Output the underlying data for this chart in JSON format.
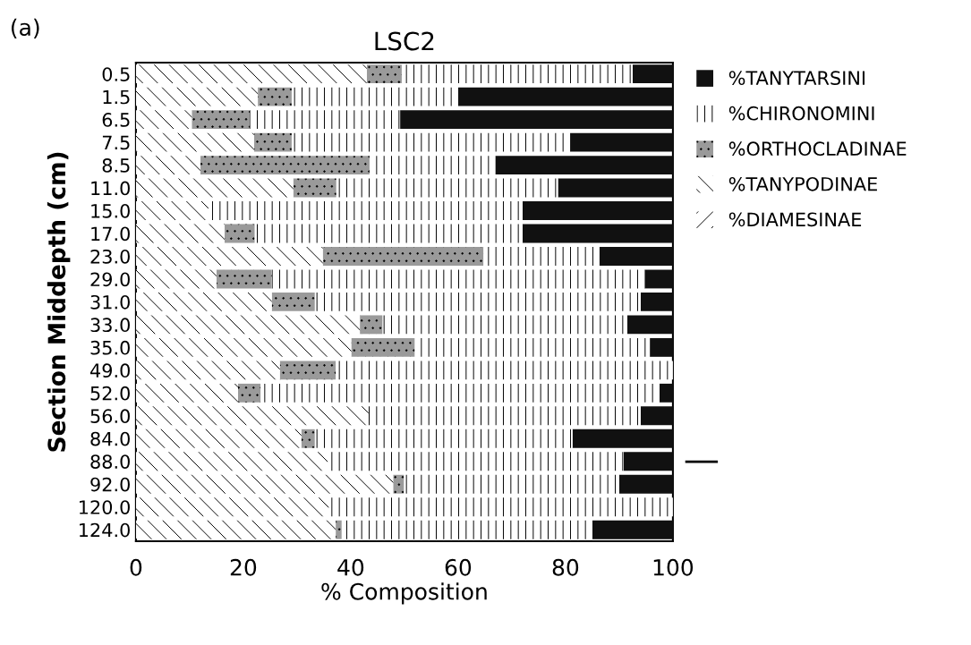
{
  "chart_data": {
    "type": "bar",
    "orientation": "horizontal",
    "stacked": true,
    "title": "LSC2",
    "xlabel": "% Composition",
    "ylabel": "Section Middepth (cm)",
    "annotations": [
      "(a)"
    ],
    "categories": [
      "0.5",
      "1.5",
      "6.5",
      "7.5",
      "8.5",
      "11.0",
      "15.0",
      "17.0",
      "23.0",
      "29.0",
      "31.0",
      "33.0",
      "35.0",
      "49.0",
      "52.0",
      "56.0",
      "84.0",
      "88.0",
      "92.0",
      "120.0",
      "124.0"
    ],
    "series": [
      {
        "name": "%DIAMESINAE",
        "color": "#ffffff",
        "values": [
          0,
          0,
          0,
          0,
          0,
          0,
          0,
          0,
          0,
          0,
          0,
          0,
          0,
          0,
          0,
          0,
          0,
          0,
          0,
          0,
          0
        ]
      },
      {
        "name": "%TANYPODINAE",
        "color": "#ffffff",
        "values": [
          43,
          22.7,
          10.4,
          22,
          12,
          29.3,
          13.5,
          16.5,
          34.8,
          15,
          25.3,
          41.7,
          40.1,
          26.8,
          19,
          43.3,
          30.8,
          35.7,
          47.9,
          35.9,
          37.2
        ]
      },
      {
        "name": "%ORTHOCLADINAE",
        "color": "#9a9a9a",
        "values": [
          6.5,
          6.3,
          10.8,
          7,
          31.5,
          8,
          0,
          5.6,
          29.9,
          10.3,
          8,
          4.2,
          11.8,
          10.4,
          4.2,
          0,
          2.5,
          0,
          2,
          0,
          1.1
        ]
      },
      {
        "name": "%CHIRONOMINI",
        "color": "#ffffff",
        "values": [
          43,
          31,
          28,
          52,
          23.5,
          41.3,
          58.5,
          49.9,
          21.6,
          69.5,
          60.7,
          45.6,
          43.8,
          62.8,
          74.3,
          50.7,
          48,
          55.1,
          40.1,
          64.1,
          46.7
        ]
      },
      {
        "name": "%TANYTARSINI",
        "color": "#111111",
        "values": [
          7.5,
          40,
          50.8,
          19,
          33,
          21.4,
          28,
          28,
          13.7,
          5.2,
          6,
          8.5,
          4.3,
          0,
          2.5,
          6,
          18.7,
          9.2,
          10,
          0,
          15
        ]
      }
    ],
    "xlim": [
      0,
      100
    ],
    "xticks": [
      0,
      20,
      40,
      60,
      80,
      100
    ],
    "legend": "right",
    "grid": false
  }
}
